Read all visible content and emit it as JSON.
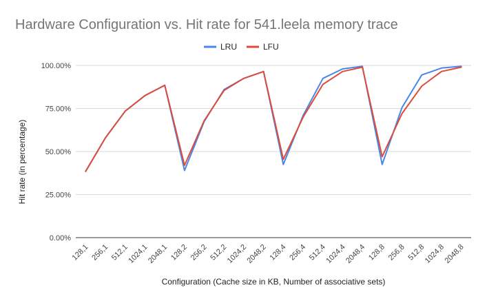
{
  "chart_data": {
    "type": "line",
    "title": "Hardware Configuration vs. Hit rate for 541.leela memory trace",
    "xlabel": "Configuration (Cache size in KB, Number of associative sets)",
    "ylabel": "Hit rate (in percentage)",
    "ylim": [
      0,
      100
    ],
    "yticks": [
      "0.00%",
      "25.00%",
      "50.00%",
      "75.00%",
      "100.00%"
    ],
    "grid": true,
    "legend_position": "top",
    "categories": [
      "128,1",
      "256,1",
      "512,1",
      "1024,1",
      "2048,1",
      "128,2",
      "256,2",
      "512,2",
      "1024,2",
      "2048,2",
      "128,4",
      "256,4",
      "512,4",
      "1024,4",
      "2048,4",
      "128,8",
      "256,8",
      "512,8",
      "1024,8",
      "2048,8"
    ],
    "series": [
      {
        "name": "LRU",
        "color": "#4a86e8",
        "values": [
          38.5,
          58,
          73.5,
          82.5,
          88.5,
          39,
          67.5,
          86,
          92.5,
          96.5,
          42.5,
          71,
          92.5,
          98,
          99.5,
          42.5,
          75.5,
          94.5,
          98.5,
          99.5
        ]
      },
      {
        "name": "LFU",
        "color": "#dd4b39",
        "values": [
          38.5,
          58,
          73.5,
          82.5,
          88.5,
          42,
          68,
          85.5,
          92.5,
          96.5,
          45.5,
          70,
          89,
          96.5,
          99,
          47,
          72,
          88,
          96.5,
          99
        ]
      }
    ]
  }
}
